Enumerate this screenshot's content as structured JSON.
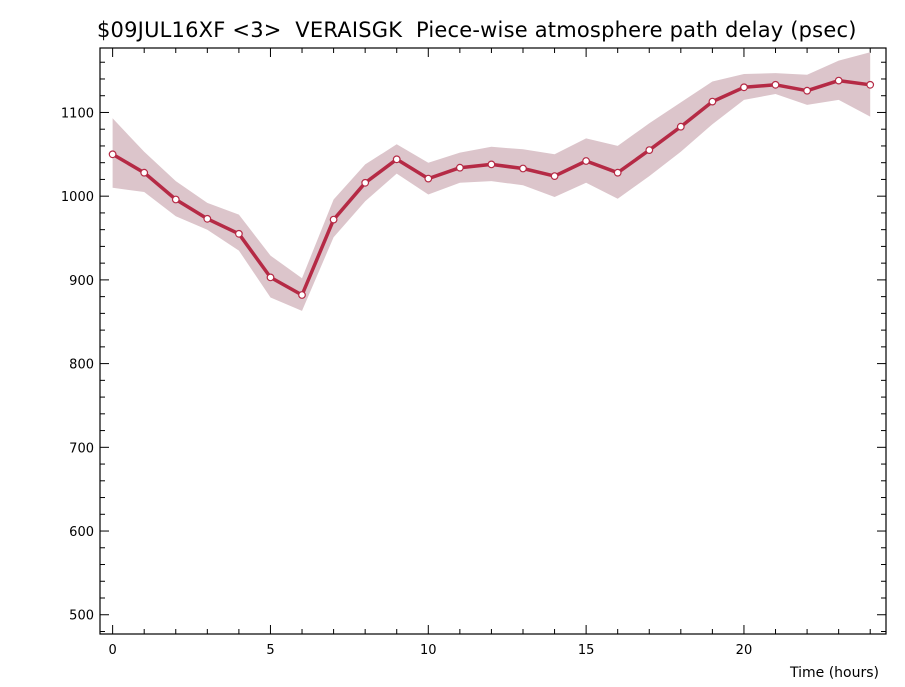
{
  "chart_data": {
    "type": "line",
    "title": "$09JUL16XF <3>  VERAISGK  Piece-wise atmosphere path delay (psec)",
    "xlabel": "Time (hours)",
    "ylabel": "",
    "xlim": [
      -0.4,
      24.5
    ],
    "ylim": [
      477,
      1177
    ],
    "x_ticks": [
      0,
      5,
      10,
      15,
      20
    ],
    "y_ticks": [
      500,
      600,
      700,
      800,
      900,
      1000,
      1100
    ],
    "grid": false,
    "colors": {
      "line": "#b52a45",
      "band": "#dcc5cb",
      "marker_fill": "#ffffff"
    },
    "series": [
      {
        "x": [
          0,
          1,
          2,
          3,
          4,
          5,
          6,
          7,
          8,
          9,
          10,
          11,
          12,
          13,
          14,
          15,
          16,
          17,
          18,
          19,
          20,
          21,
          22,
          23,
          24
        ],
        "values": [
          1050,
          1028,
          996,
          973,
          955,
          903,
          882,
          972,
          1016,
          1044,
          1021,
          1034,
          1038,
          1033,
          1024,
          1042,
          1028,
          1055,
          1083,
          1113,
          1130,
          1133,
          1126,
          1138,
          1133
        ],
        "upper": [
          1093,
          1053,
          1018,
          992,
          978,
          929,
          902,
          996,
          1038,
          1062,
          1040,
          1052,
          1059,
          1056,
          1050,
          1069,
          1060,
          1087,
          1112,
          1137,
          1146,
          1147,
          1145,
          1162,
          1172
        ],
        "lower": [
          1010,
          1005,
          976,
          960,
          935,
          879,
          863,
          951,
          994,
          1027,
          1002,
          1016,
          1018,
          1013,
          999,
          1016,
          997,
          1024,
          1053,
          1086,
          1115,
          1122,
          1109,
          1115,
          1095
        ]
      }
    ]
  }
}
